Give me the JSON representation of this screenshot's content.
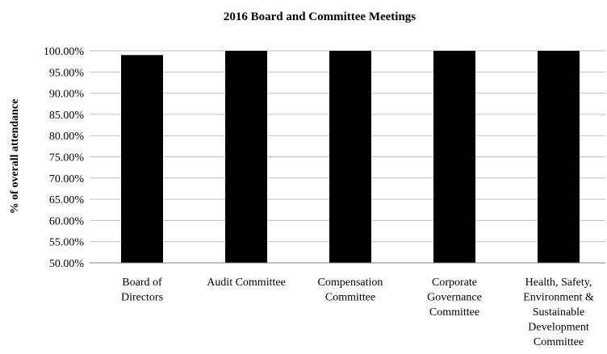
{
  "chart_data": {
    "type": "bar",
    "title": "2016 Board and Committee Meetings",
    "xlabel": "",
    "ylabel": "% of overall attendance",
    "categories": [
      [
        "Board of",
        "Directors"
      ],
      [
        "Audit Committee"
      ],
      [
        "Compensation",
        "Committee"
      ],
      [
        "Corporate",
        "Governance",
        "Committee"
      ],
      [
        "Health, Safety,",
        "Environment &",
        "Sustainable",
        "Development",
        "Committee"
      ]
    ],
    "values": [
      99.0,
      100.0,
      100.0,
      100.0,
      100.0
    ],
    "ylim": [
      50,
      100
    ],
    "yticks": [
      "100.00%",
      "95.00%",
      "90.00%",
      "85.00%",
      "80.00%",
      "75.00%",
      "70.00%",
      "65.00%",
      "60.00%",
      "55.00%",
      "50.00%"
    ],
    "grid": true,
    "legend": "none",
    "bar_color": "#000000",
    "grid_color": "#bfbfbf"
  }
}
